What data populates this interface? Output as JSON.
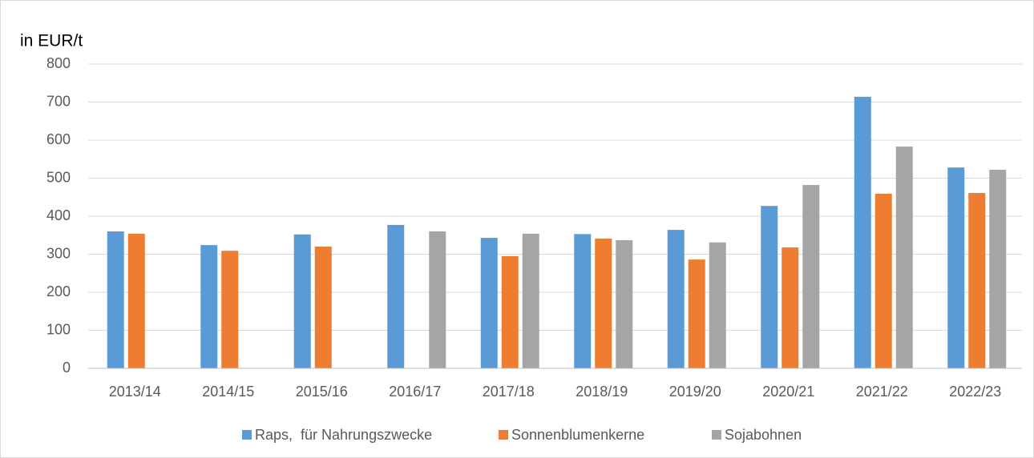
{
  "chart_data": {
    "type": "bar",
    "y_axis_label": "in EUR/t",
    "categories": [
      "2013/14",
      "2014/15",
      "2015/16",
      "2016/17",
      "2017/18",
      "2018/19",
      "2019/20",
      "2020/21",
      "2021/22",
      "2022/23"
    ],
    "series": [
      {
        "name": "Raps,  für Nahrungszwecke",
        "color": "#5b9bd5",
        "values": [
          360,
          324,
          352,
          377,
          343,
          353,
          364,
          427,
          714,
          528
        ]
      },
      {
        "name": "Sonnenblumenkerne",
        "color": "#ed7d31",
        "values": [
          354,
          309,
          320,
          null,
          295,
          341,
          286,
          318,
          459,
          461
        ]
      },
      {
        "name": "Sojabohnen",
        "color": "#a5a5a5",
        "values": [
          null,
          null,
          null,
          360,
          354,
          337,
          331,
          482,
          583,
          522
        ]
      }
    ],
    "ylim": [
      0,
      800
    ],
    "yticks": [
      0,
      100,
      200,
      300,
      400,
      500,
      600,
      700,
      800
    ],
    "grid": true,
    "legend": "bottom"
  }
}
